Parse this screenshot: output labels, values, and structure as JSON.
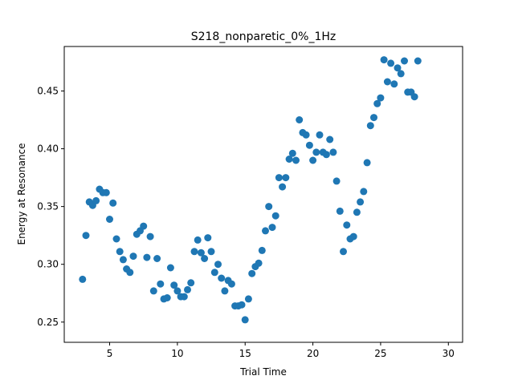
{
  "chart_data": {
    "type": "scatter",
    "title": "S218_nonparetic_0%_1Hz",
    "xlabel": "Trial Time",
    "ylabel": "Energy at Resonance",
    "xlim": [
      1.65,
      31.05
    ],
    "ylim": [
      0.2325,
      0.4885
    ],
    "xticks": [
      5,
      10,
      15,
      20,
      25,
      30
    ],
    "xtick_labels": [
      "5",
      "10",
      "15",
      "20",
      "25",
      "30"
    ],
    "yticks": [
      0.25,
      0.3,
      0.35,
      0.4,
      0.45
    ],
    "ytick_labels": [
      "0.25",
      "0.30",
      "0.35",
      "0.40",
      "0.45"
    ],
    "grid": false,
    "legend": "none",
    "marker_color": "#1f77b4",
    "series": [
      {
        "points": [
          [
            3.0,
            0.287
          ],
          [
            3.25,
            0.325
          ],
          [
            3.5,
            0.354
          ],
          [
            3.75,
            0.351
          ],
          [
            4.0,
            0.355
          ],
          [
            4.25,
            0.365
          ],
          [
            4.5,
            0.362
          ],
          [
            4.75,
            0.362
          ],
          [
            5.0,
            0.339
          ],
          [
            5.25,
            0.353
          ],
          [
            5.5,
            0.322
          ],
          [
            5.75,
            0.311
          ],
          [
            6.0,
            0.304
          ],
          [
            6.25,
            0.296
          ],
          [
            6.5,
            0.293
          ],
          [
            6.75,
            0.307
          ],
          [
            7.0,
            0.326
          ],
          [
            7.25,
            0.329
          ],
          [
            7.5,
            0.333
          ],
          [
            7.75,
            0.306
          ],
          [
            8.0,
            0.324
          ],
          [
            8.25,
            0.277
          ],
          [
            8.5,
            0.305
          ],
          [
            8.75,
            0.283
          ],
          [
            9.0,
            0.27
          ],
          [
            9.25,
            0.271
          ],
          [
            9.5,
            0.297
          ],
          [
            9.75,
            0.282
          ],
          [
            10.0,
            0.277
          ],
          [
            10.25,
            0.272
          ],
          [
            10.5,
            0.272
          ],
          [
            10.75,
            0.278
          ],
          [
            11.0,
            0.284
          ],
          [
            11.25,
            0.311
          ],
          [
            11.5,
            0.321
          ],
          [
            11.75,
            0.31
          ],
          [
            12.0,
            0.305
          ],
          [
            12.25,
            0.323
          ],
          [
            12.5,
            0.311
          ],
          [
            12.75,
            0.293
          ],
          [
            13.0,
            0.3
          ],
          [
            13.25,
            0.288
          ],
          [
            13.5,
            0.277
          ],
          [
            13.75,
            0.286
          ],
          [
            14.0,
            0.283
          ],
          [
            14.25,
            0.264
          ],
          [
            14.5,
            0.264
          ],
          [
            14.75,
            0.265
          ],
          [
            15.0,
            0.252
          ],
          [
            15.25,
            0.27
          ],
          [
            15.5,
            0.292
          ],
          [
            15.75,
            0.298
          ],
          [
            16.0,
            0.301
          ],
          [
            16.25,
            0.312
          ],
          [
            16.5,
            0.329
          ],
          [
            16.75,
            0.35
          ],
          [
            17.0,
            0.332
          ],
          [
            17.25,
            0.342
          ],
          [
            17.5,
            0.375
          ],
          [
            17.75,
            0.367
          ],
          [
            18.0,
            0.375
          ],
          [
            18.25,
            0.391
          ],
          [
            18.5,
            0.396
          ],
          [
            18.75,
            0.39
          ],
          [
            19.0,
            0.425
          ],
          [
            19.25,
            0.414
          ],
          [
            19.5,
            0.412
          ],
          [
            19.75,
            0.403
          ],
          [
            20.0,
            0.39
          ],
          [
            20.25,
            0.397
          ],
          [
            20.5,
            0.412
          ],
          [
            20.75,
            0.397
          ],
          [
            21.0,
            0.395
          ],
          [
            21.25,
            0.408
          ],
          [
            21.5,
            0.397
          ],
          [
            21.75,
            0.372
          ],
          [
            22.0,
            0.346
          ],
          [
            22.25,
            0.311
          ],
          [
            22.5,
            0.334
          ],
          [
            22.75,
            0.322
          ],
          [
            23.0,
            0.324
          ],
          [
            23.25,
            0.345
          ],
          [
            23.5,
            0.354
          ],
          [
            23.75,
            0.363
          ],
          [
            24.0,
            0.388
          ],
          [
            24.25,
            0.42
          ],
          [
            24.5,
            0.427
          ],
          [
            24.75,
            0.439
          ],
          [
            25.0,
            0.444
          ],
          [
            25.25,
            0.477
          ],
          [
            25.5,
            0.458
          ],
          [
            25.75,
            0.474
          ],
          [
            26.0,
            0.456
          ],
          [
            26.25,
            0.47
          ],
          [
            26.5,
            0.465
          ],
          [
            26.75,
            0.476
          ],
          [
            27.0,
            0.449
          ],
          [
            27.25,
            0.449
          ],
          [
            27.5,
            0.445
          ],
          [
            27.75,
            0.476
          ]
        ]
      }
    ]
  }
}
